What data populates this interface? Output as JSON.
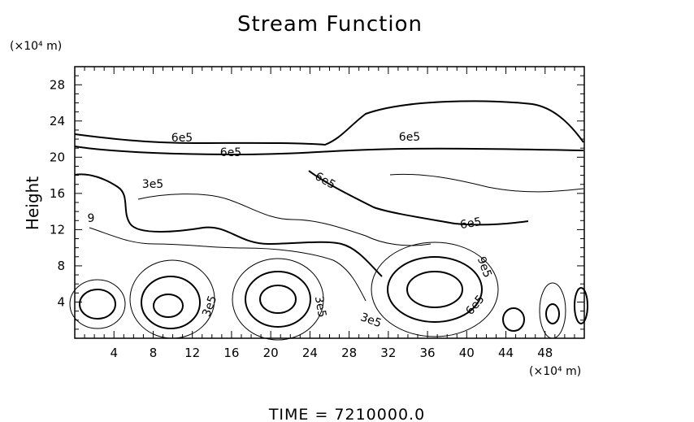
{
  "chart_data": {
    "type": "contour",
    "title": "Stream Function",
    "ylabel": "Height",
    "x_unit_label": "(×10⁴ m)",
    "y_unit_label": "(×10⁴ m)",
    "xlim": [
      0,
      52
    ],
    "ylim": [
      0,
      30
    ],
    "x_ticks": [
      4,
      8,
      12,
      16,
      20,
      24,
      28,
      32,
      36,
      40,
      44,
      48
    ],
    "y_ticks": [
      4,
      8,
      12,
      16,
      20,
      24,
      28
    ],
    "contour_labels": [
      "6e5",
      "6e5",
      "6e5",
      "6e5",
      "3e5",
      "6e5",
      "9e5",
      "6e5",
      "3e5",
      "3e5",
      "3e5",
      "9"
    ],
    "line_color": "#000000",
    "footer": "TIME  =  7210000.0"
  }
}
